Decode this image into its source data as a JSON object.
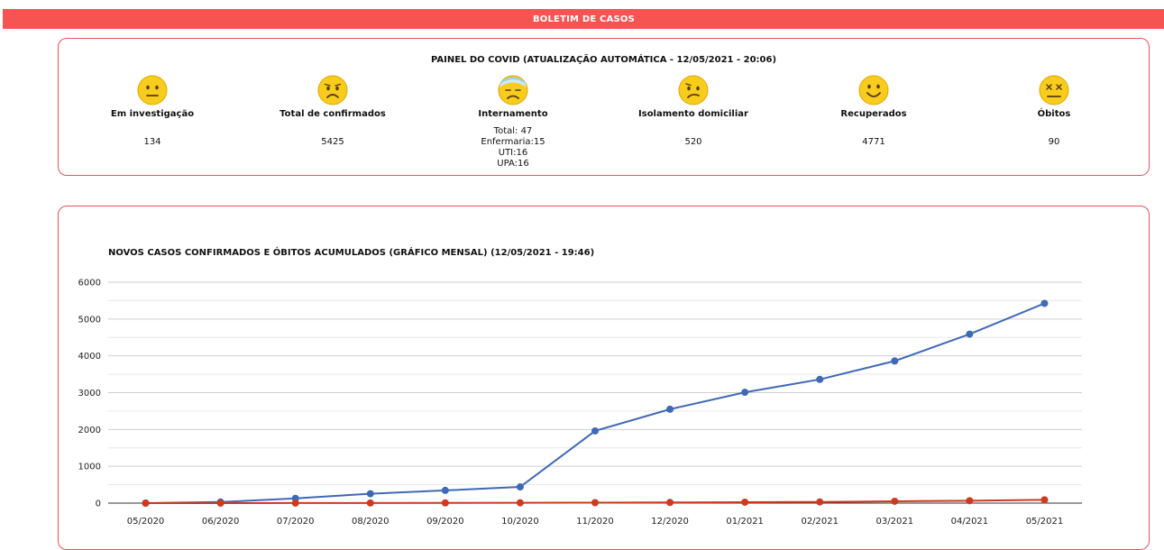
{
  "header": {
    "title": "BOLETIM DE CASOS"
  },
  "panel": {
    "title": "PAINEL DO COVID (ATUALIZAÇÃO AUTOMÁTICA - 12/05/2021 - 20:06)",
    "stats": [
      {
        "label": "Em investigação",
        "value": "134",
        "icon": "neutral-face-icon"
      },
      {
        "label": "Total de confirmados",
        "value": "5425",
        "icon": "frowning-face-icon"
      },
      {
        "label": "Internamento",
        "lines": [
          "Total: 47",
          "Enfermaria:15",
          "UTI:16",
          "UPA:16"
        ],
        "icon": "bandaged-face-icon"
      },
      {
        "label": "Isolamento domiciliar",
        "value": "520",
        "icon": "confused-face-icon"
      },
      {
        "label": "Recuperados",
        "value": "4771",
        "icon": "smiling-face-icon"
      },
      {
        "label": "Óbitos",
        "value": "90",
        "icon": "dead-face-icon"
      }
    ]
  },
  "colors": {
    "header": "#f65353",
    "border": "#e0555a",
    "confirmed": "#3f68b5",
    "deaths": "#cc3a1f",
    "face": "#f7cc1c"
  },
  "chart_data": {
    "type": "line",
    "title": "NOVOS CASOS CONFIRMADOS E ÓBITOS ACUMULADOS (GRÁFICO MENSAL) (12/05/2021 - 19:46)",
    "categories": [
      "05/2020",
      "06/2020",
      "07/2020",
      "08/2020",
      "09/2020",
      "10/2020",
      "11/2020",
      "12/2020",
      "01/2021",
      "02/2021",
      "03/2021",
      "04/2021",
      "05/2021"
    ],
    "series": [
      {
        "values": [
          0,
          30,
          130,
          255,
          345,
          440,
          1960,
          2550,
          3010,
          3360,
          3860,
          4590,
          5425
        ]
      },
      {
        "values": [
          0,
          0,
          2,
          4,
          6,
          8,
          12,
          18,
          25,
          32,
          50,
          65,
          90
        ]
      }
    ],
    "ylim": [
      0,
      6000
    ],
    "yticks": [
      0,
      1000,
      2000,
      3000,
      4000,
      5000,
      6000
    ],
    "grid": true,
    "legend": "none"
  }
}
